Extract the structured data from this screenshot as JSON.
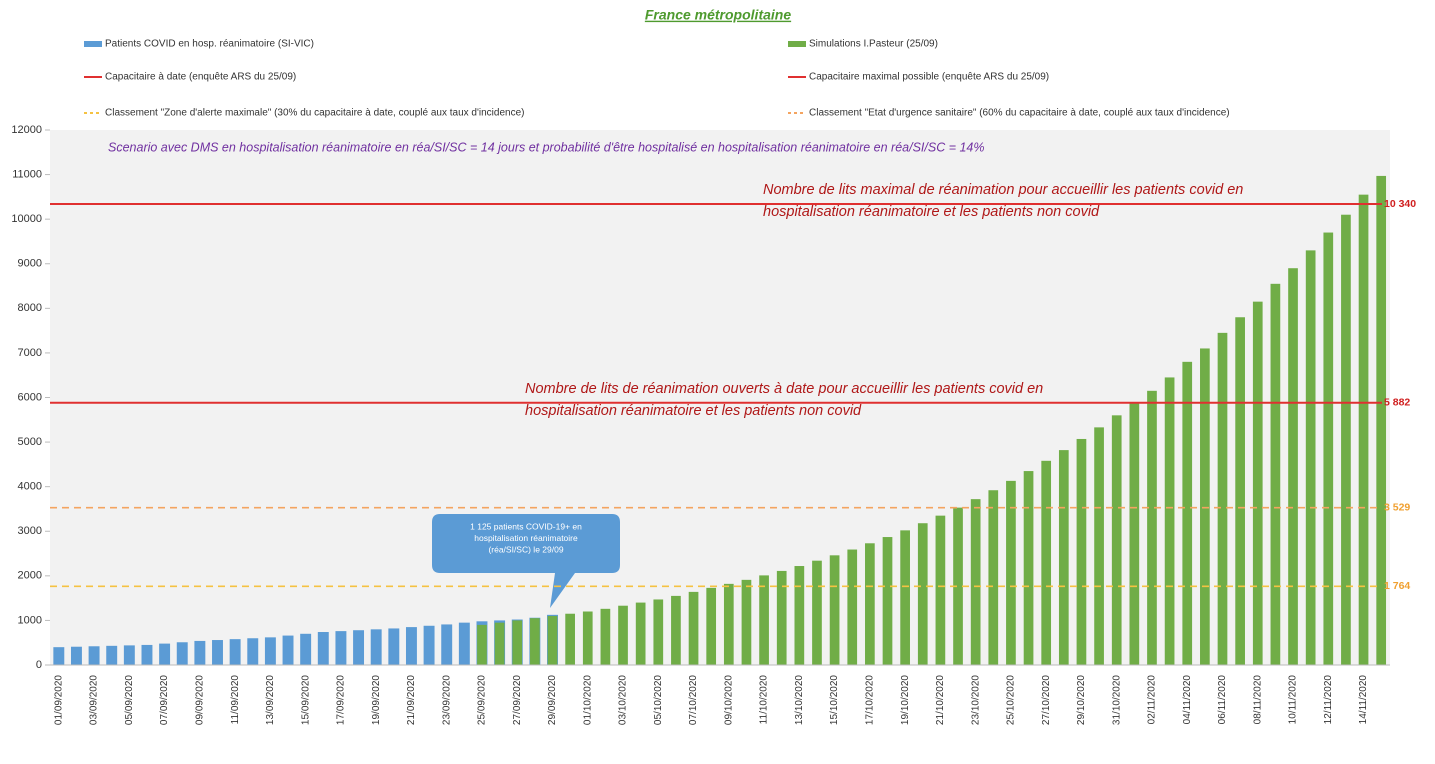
{
  "chart_data": {
    "type": "bar",
    "title": "France métropolitaine",
    "subtitle": "Scenario avec DMS en hospitalisation réanimatoire en réa/SI/SC = 14 jours et probabilité  d'être hospitalisé en hospitalisation réanimatoire en réa/SI/SC = 14%",
    "categories": [
      "01/09/2020",
      null,
      "03/09/2020",
      null,
      "05/09/2020",
      null,
      "07/09/2020",
      null,
      "09/09/2020",
      null,
      "11/09/2020",
      null,
      "13/09/2020",
      null,
      "15/09/2020",
      null,
      "17/09/2020",
      null,
      "19/09/2020",
      null,
      "21/09/2020",
      null,
      "23/09/2020",
      null,
      "25/09/2020",
      null,
      "27/09/2020",
      null,
      "29/09/2020",
      null,
      "01/10/2020",
      null,
      "03/10/2020",
      null,
      "05/10/2020",
      null,
      "07/10/2020",
      null,
      "09/10/2020",
      null,
      "11/10/2020",
      null,
      "13/10/2020",
      null,
      "15/10/2020",
      null,
      "17/10/2020",
      null,
      "19/10/2020",
      null,
      "21/10/2020",
      null,
      "23/10/2020",
      null,
      "25/10/2020",
      null,
      "27/10/2020",
      null,
      "29/10/2020",
      null,
      "31/10/2020",
      null,
      "02/11/2020",
      null,
      "04/11/2020",
      null,
      "06/11/2020",
      null,
      "08/11/2020",
      null,
      "10/11/2020",
      null,
      "12/11/2020",
      null,
      "14/11/2020",
      null
    ],
    "series": [
      {
        "name": "Patients COVID en hosp. réanimatoire (SI-VIC)",
        "color": "#5b9bd5",
        "values": [
          400,
          410,
          420,
          430,
          440,
          450,
          480,
          510,
          540,
          560,
          580,
          600,
          620,
          660,
          700,
          740,
          760,
          780,
          800,
          820,
          850,
          880,
          910,
          950,
          980,
          1000,
          1020,
          1060,
          1125,
          null,
          null,
          null,
          null,
          null,
          null,
          null,
          null,
          null,
          null,
          null,
          null,
          null,
          null,
          null,
          null,
          null,
          null,
          null,
          null,
          null,
          null,
          null,
          null,
          null,
          null,
          null,
          null,
          null,
          null,
          null,
          null,
          null,
          null,
          null,
          null,
          null,
          null,
          null,
          null,
          null,
          null,
          null,
          null,
          null,
          null,
          null
        ]
      },
      {
        "name": "Simulations I.Pasteur (25/09)",
        "color": "#70ad47",
        "values": [
          null,
          null,
          null,
          null,
          null,
          null,
          null,
          null,
          null,
          null,
          null,
          null,
          null,
          null,
          null,
          null,
          null,
          null,
          null,
          null,
          null,
          null,
          null,
          null,
          900,
          950,
          1000,
          1050,
          1100,
          1150,
          1200,
          1260,
          1330,
          1400,
          1470,
          1550,
          1640,
          1730,
          1820,
          1910,
          2010,
          2110,
          2220,
          2340,
          2460,
          2590,
          2730,
          2870,
          3020,
          3180,
          3350,
          3530,
          3720,
          3920,
          4130,
          4350,
          4580,
          4820,
          5070,
          5330,
          5600,
          5880,
          6150,
          6450,
          6800,
          7100,
          7450,
          7800,
          8150,
          8550,
          8900,
          9300,
          9700,
          10100,
          10550,
          10970
        ]
      }
    ],
    "reference_lines": [
      {
        "name": "Capacitaire à date (enquête ARS du 25/09)",
        "color": "#e03030",
        "dashed": false,
        "value": 5882,
        "value_label": "5 882"
      },
      {
        "name": "Capacitaire maximal possible (enquête ARS du 25/09)",
        "color": "#e03030",
        "dashed": false,
        "value": 10340,
        "value_label": "10 340"
      },
      {
        "name": "Classement \"Zone d'alerte maximale\" (30% du capacitaire à date, couplé aux taux d'incidence)",
        "color": "#f5c242",
        "dashed": true,
        "value": 1764,
        "value_label": "1 764"
      },
      {
        "name": "Classement \"Etat d'urgence sanitaire\" (60% du capacitaire à date, couplé aux taux d'incidence)",
        "color": "#f4a460",
        "dashed": true,
        "value": 3529,
        "value_label": "3 529"
      }
    ],
    "annotations": [
      {
        "lines": [
          "Nombre de lits maximal de réanimation pour accueillir les patients covid en",
          "hospitalisation réanimatoire et les patients non covid"
        ]
      },
      {
        "lines": [
          "Nombre de lits de réanimation ouverts à date pour accueillir les patients covid en",
          "hospitalisation réanimatoire et les patients non covid"
        ]
      }
    ],
    "callout": {
      "lines": [
        "1 125 patients COVID-19+ en",
        "hospitalisation réanimatoire",
        "(réa/SI/SC) le 29/09"
      ]
    },
    "ylim": [
      0,
      12000
    ],
    "yticks": [
      0,
      1000,
      2000,
      3000,
      4000,
      5000,
      6000,
      7000,
      8000,
      9000,
      10000,
      11000,
      12000
    ],
    "grid": false
  }
}
